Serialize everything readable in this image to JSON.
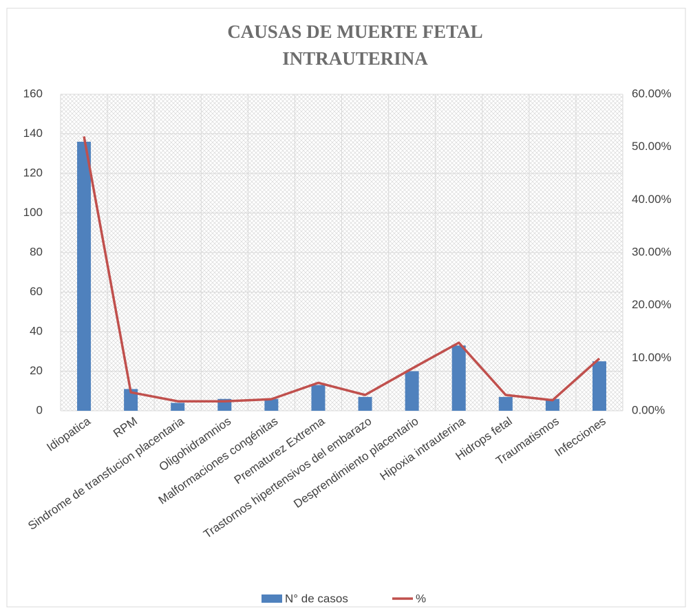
{
  "chart_data": {
    "type": "bar_line",
    "title": [
      "CAUSAS DE MUERTE FETAL",
      "INTRAUTERINA"
    ],
    "categories": [
      "Idiopatica",
      "RPM",
      "Sindrome de transfucion placentaria",
      "Oligohidramnios",
      "Malformaciones congénitas",
      "Prematurez Extrema",
      "Trastornos hipertensivos del embarazo",
      "Desprendimiento placentario",
      "Hipoxia intrauterina",
      "Hidrops fetal",
      "Traumatismos",
      "Infecciones"
    ],
    "series": [
      {
        "name": "N° de casos",
        "type": "bar",
        "color": "#4f81bd",
        "values": [
          136,
          11,
          4,
          6,
          6,
          13,
          7,
          20,
          33,
          7,
          6,
          25
        ]
      },
      {
        "name": "%",
        "type": "line",
        "axis": "y2",
        "color": "#c0504d",
        "values": [
          52,
          3.5,
          1.8,
          1.8,
          2.2,
          5.3,
          3,
          8,
          12.9,
          3,
          2,
          9.9
        ]
      }
    ],
    "ylim": [
      0,
      160
    ],
    "yticks": [
      0,
      20,
      40,
      60,
      80,
      100,
      120,
      140,
      160
    ],
    "y2lim": [
      0,
      60
    ],
    "y2ticks": [
      {
        "value": 0,
        "label": "0.00%"
      },
      {
        "value": 10,
        "label": "10.00%"
      },
      {
        "value": 20,
        "label": "20.00%"
      },
      {
        "value": 30,
        "label": "30.00%"
      },
      {
        "value": 40,
        "label": "40.00%"
      },
      {
        "value": 50,
        "label": "50.00%"
      },
      {
        "value": 60,
        "label": "60.00%"
      }
    ],
    "grid": true,
    "legend": "bottom"
  }
}
